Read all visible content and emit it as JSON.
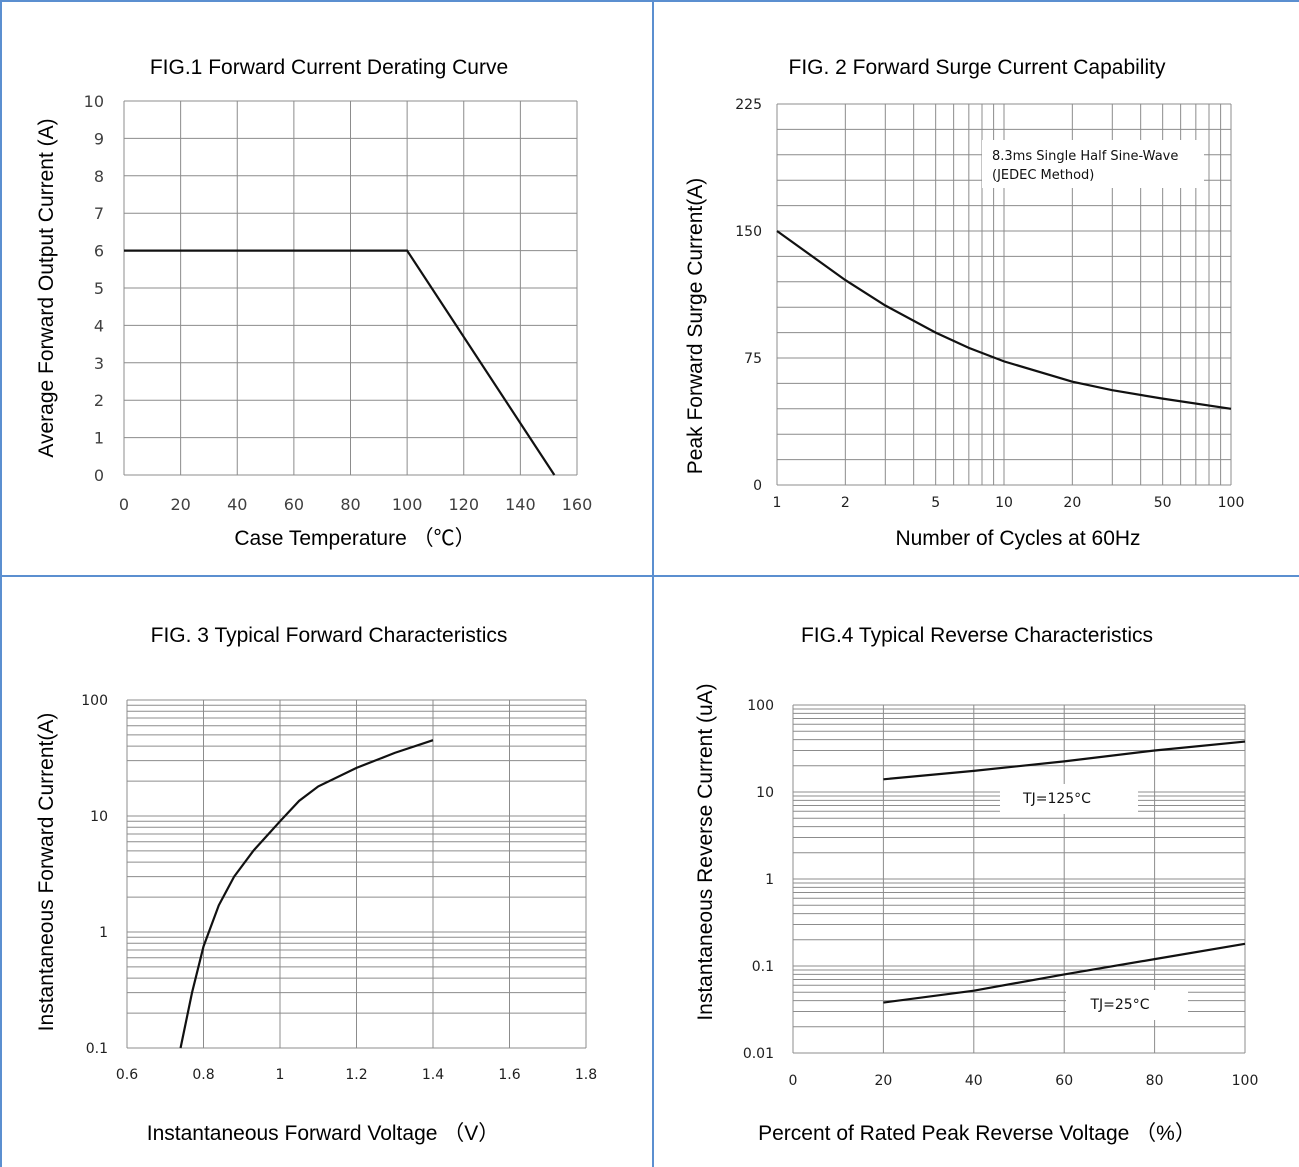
{
  "chart_data": [
    {
      "type": "line",
      "title": "FIG.1 Forward Current Derating Curve",
      "xlabel": "Case Temperature （℃）",
      "ylabel": "Average Forward Output Current (A)",
      "xlim": [
        0,
        160
      ],
      "ylim": [
        0,
        10
      ],
      "xticks": [
        "0",
        "20",
        "40",
        "60",
        "80",
        "100",
        "120",
        "140",
        "160"
      ],
      "yticks": [
        "0",
        "1",
        "2",
        "3",
        "4",
        "5",
        "6",
        "7",
        "8",
        "9",
        "10"
      ],
      "grid": true,
      "series": [
        {
          "x": [
            0,
            100,
            152
          ],
          "y": [
            6,
            6,
            0
          ]
        }
      ]
    },
    {
      "type": "line",
      "title": "FIG. 2 Forward Surge Current Capability",
      "xlabel": "Number of Cycles at 60Hz",
      "ylabel": "Peak Forward Surge Current(A)",
      "xscale": "log",
      "xlim": [
        1,
        100
      ],
      "ylim": [
        0,
        225
      ],
      "xticks": [
        "1",
        "2",
        "5",
        "10",
        "20",
        "50",
        "100"
      ],
      "yticks": [
        "0",
        "75",
        "150",
        "225"
      ],
      "grid": true,
      "annotation": [
        "8.3ms Single Half Sine-Wave",
        "(JEDEC Method)"
      ],
      "series": [
        {
          "x": [
            1,
            2,
            3,
            5,
            7,
            10,
            20,
            30,
            50,
            100
          ],
          "y": [
            150,
            121,
            106,
            90,
            81,
            73,
            61,
            56,
            51,
            45
          ]
        }
      ]
    },
    {
      "type": "line",
      "title": "FIG. 3 Typical Forward Characteristics",
      "xlabel": "Instantaneous Forward Voltage （V）",
      "ylabel": "Instantaneous Forward Current(A)",
      "yscale": "log",
      "xlim": [
        0.6,
        1.8
      ],
      "ylim": [
        0.1,
        100
      ],
      "xticks": [
        "0.6",
        "0.8",
        "1",
        "1.2",
        "1.4",
        "1.6",
        "1.8"
      ],
      "yticks": [
        "0.1",
        "1",
        "10",
        "100"
      ],
      "grid": true,
      "series": [
        {
          "x": [
            0.74,
            0.77,
            0.8,
            0.84,
            0.88,
            0.93,
            0.97,
            1.0,
            1.05,
            1.1,
            1.2,
            1.3,
            1.4
          ],
          "y": [
            0.1,
            0.3,
            0.75,
            1.7,
            3.0,
            5.0,
            7.0,
            9.0,
            13.5,
            18,
            26,
            35,
            45
          ]
        }
      ]
    },
    {
      "type": "line",
      "title": "FIG.4 Typical Reverse Characteristics",
      "xlabel": "Percent of Rated Peak Reverse Voltage （%）",
      "ylabel": "Instantaneous Reverse Current (uA)",
      "yscale": "log",
      "xlim": [
        0,
        100
      ],
      "ylim": [
        0.01,
        100
      ],
      "xticks": [
        "0",
        "20",
        "40",
        "60",
        "80",
        "100"
      ],
      "yticks": [
        "0.01",
        "0.1",
        "1",
        "10",
        "100"
      ],
      "grid": true,
      "series": [
        {
          "name": "TJ=125°C",
          "x": [
            20,
            40,
            60,
            80,
            100
          ],
          "y": [
            14,
            17.5,
            22.5,
            30,
            38
          ]
        },
        {
          "name": "TJ=25°C",
          "x": [
            20,
            40,
            60,
            80,
            100
          ],
          "y": [
            0.038,
            0.052,
            0.08,
            0.12,
            0.18
          ]
        }
      ]
    }
  ]
}
